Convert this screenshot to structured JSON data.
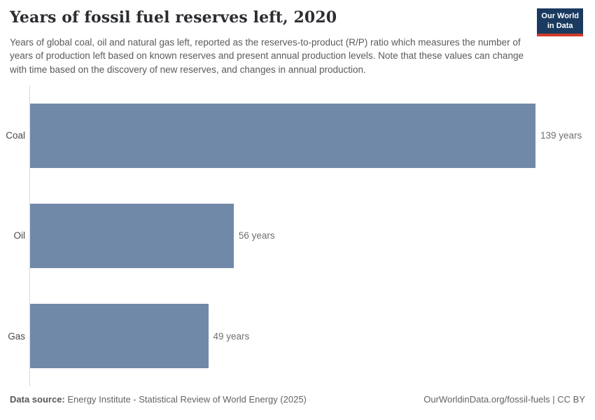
{
  "header": {
    "title": "Years of fossil fuel reserves left, 2020",
    "subtitle": "Years of global coal, oil and natural gas left, reported as the reserves-to-product (R/P) ratio which measures the number of years of production left based on known reserves and present annual production levels. Note that these values can change with time based on the discovery of new reserves, and changes in annual production.",
    "logo": {
      "line1": "Our World",
      "line2": "in Data"
    }
  },
  "chart_data": {
    "type": "bar",
    "orientation": "horizontal",
    "title": "Years of fossil fuel reserves left, 2020",
    "categories": [
      "Coal",
      "Oil",
      "Gas"
    ],
    "values": [
      139,
      56,
      49
    ],
    "value_labels": [
      "139 years",
      "56 years",
      "49 years"
    ],
    "unit": "years",
    "xlim": [
      0,
      139
    ],
    "grid": false,
    "legend": "none",
    "bar_color": "#7189a8",
    "axis_line_color": "#d9d9d9"
  },
  "footer": {
    "datasource_label": "Data source:",
    "datasource_value": " Energy Institute - Statistical Review of World Energy (2025)",
    "attribution": "OurWorldinData.org/fossil-fuels | CC BY"
  },
  "colors": {
    "bar": "#7189a8",
    "logo_background": "#1a3a5f",
    "logo_stripe": "#d23a2b",
    "title_text": "#2b2d31",
    "subtitle_text": "#5a5a5a"
  }
}
